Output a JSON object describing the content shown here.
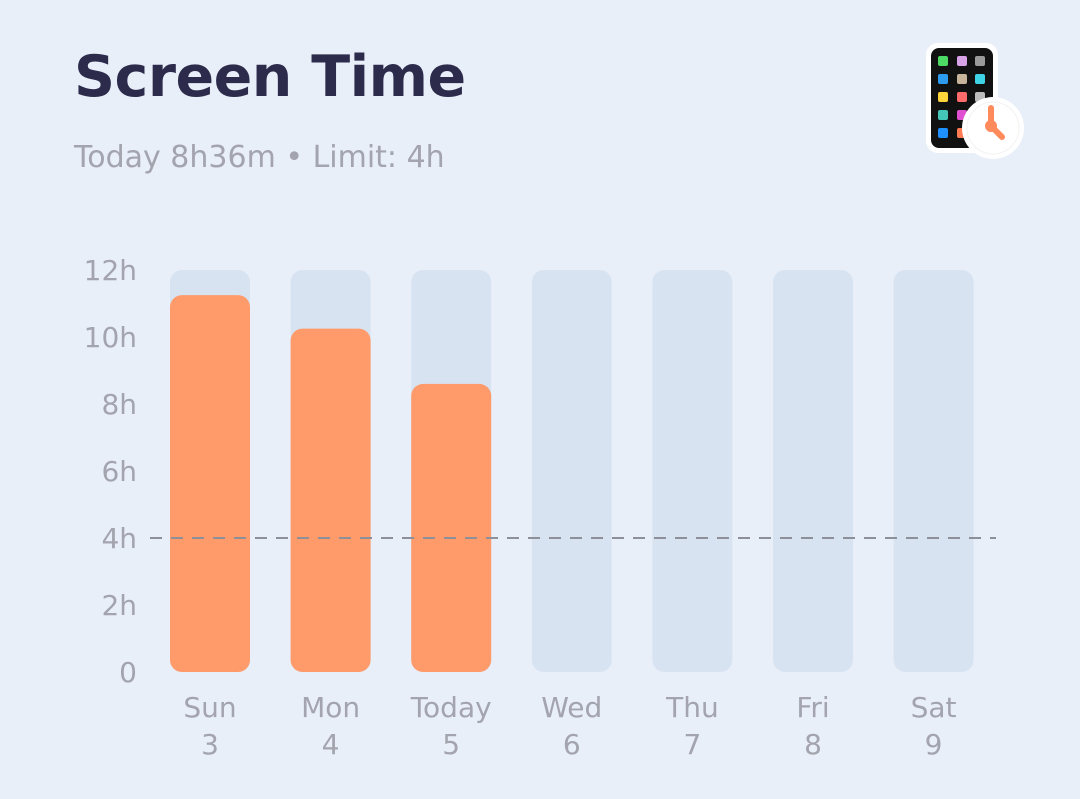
{
  "header": {
    "title": "Screen Time",
    "subtitle": "Today 8h36m • Limit: 4h"
  },
  "icons": {
    "app": "phone-with-clock-icon"
  },
  "colors": {
    "background": "#e9eff9",
    "track": "#d8e3f2",
    "bar": "#ff9a6b",
    "title": "#2c2b4b",
    "muted": "#a3a4ad",
    "limit_line": "#8d9098"
  },
  "chart_data": {
    "type": "bar",
    "title": "Screen Time",
    "subtitle": "Today 8h36m • Limit: 4h",
    "xlabel": "",
    "ylabel": "",
    "categories": [
      "Sun 3",
      "Mon 4",
      "Today 5",
      "Wed 6",
      "Thu 7",
      "Fri 8",
      "Sat 9"
    ],
    "day_labels": [
      "Sun",
      "Mon",
      "Today",
      "Wed",
      "Thu",
      "Fri",
      "Sat"
    ],
    "date_labels": [
      "3",
      "4",
      "5",
      "6",
      "7",
      "8",
      "9"
    ],
    "values": [
      11.25,
      10.25,
      8.6,
      null,
      null,
      null,
      null
    ],
    "ylim": [
      0,
      12
    ],
    "yticks": [
      0,
      2,
      4,
      6,
      8,
      10,
      12
    ],
    "ytick_labels": [
      "0",
      "2h",
      "4h",
      "6h",
      "8h",
      "10h",
      "12h"
    ],
    "limit": {
      "value": 4,
      "style": "dashed"
    },
    "grid": false,
    "legend": "none"
  }
}
